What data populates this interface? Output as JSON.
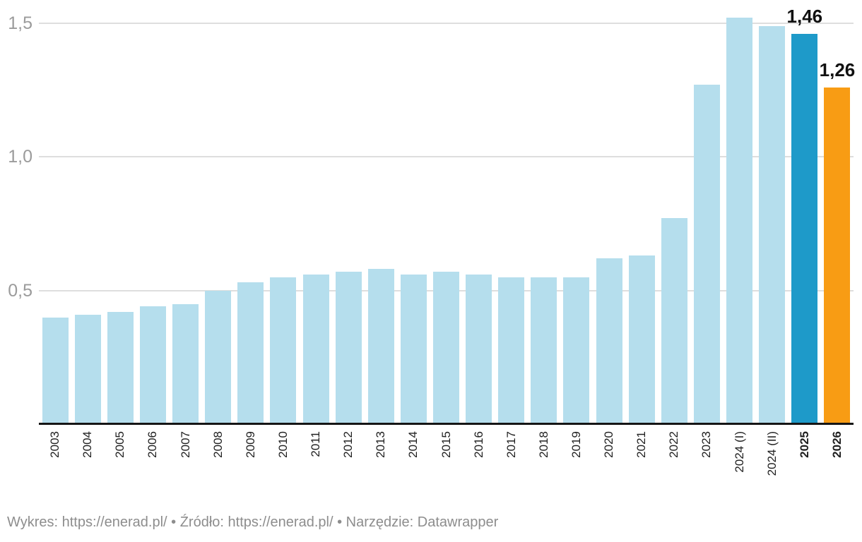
{
  "chart_data": {
    "type": "bar",
    "title": "",
    "xlabel": "",
    "ylabel": "",
    "categories": [
      "2003",
      "2004",
      "2005",
      "2006",
      "2007",
      "2008",
      "2009",
      "2010",
      "2011",
      "2012",
      "2013",
      "2014",
      "2015",
      "2016",
      "2017",
      "2018",
      "2019",
      "2020",
      "2021",
      "2022",
      "2023",
      "2024 (I)",
      "2024 (II)",
      "2025",
      "2026"
    ],
    "values": [
      0.4,
      0.41,
      0.42,
      0.44,
      0.45,
      0.5,
      0.53,
      0.55,
      0.56,
      0.57,
      0.58,
      0.56,
      0.57,
      0.56,
      0.55,
      0.55,
      0.55,
      0.62,
      0.63,
      0.77,
      1.27,
      1.52,
      1.49,
      1.46,
      1.26
    ],
    "value_labels": {
      "2025": "1,46",
      "2026": "1,26"
    },
    "bold_categories": [
      "2025",
      "2026"
    ],
    "y_ticks": [
      {
        "value": 0.5,
        "label": "0,5"
      },
      {
        "value": 1.0,
        "label": "1,0"
      },
      {
        "value": 1.5,
        "label": "1,5"
      }
    ],
    "ylim": [
      0,
      1.55
    ],
    "grid": "horizontal",
    "legend": "none",
    "bar_color_default": "#b5deed",
    "bar_color_overrides": {
      "2025": "#1e9ac9",
      "2026": "#f89c14"
    }
  },
  "colors": {
    "bar_default": "#b5deed",
    "bar_highlight_blue": "#1e9ac9",
    "bar_highlight_orange": "#f89c14",
    "gridline": "#dedede",
    "axis_line": "#161616",
    "y_tick_label": "#9b9b9b",
    "x_tick_label": "#1f1f1f",
    "value_label": "#111111",
    "footer_text": "#8d8d8d",
    "background": "#ffffff"
  },
  "footer": {
    "parts": [
      {
        "text": "Wykres: ",
        "link": false,
        "name": "footer-text"
      },
      {
        "text": "https://enerad.pl/",
        "link": true,
        "name": "footer-link-chart"
      },
      {
        "text": " • ",
        "link": false,
        "name": "footer-separator"
      },
      {
        "text": "Źródło: ",
        "link": false,
        "name": "footer-text"
      },
      {
        "text": "https://enerad.pl/",
        "link": true,
        "name": "footer-link-source"
      },
      {
        "text": " • ",
        "link": false,
        "name": "footer-separator"
      },
      {
        "text": "Narzędzie: ",
        "link": false,
        "name": "footer-text"
      },
      {
        "text": "Datawrapper",
        "link": true,
        "name": "footer-link-tool"
      }
    ]
  }
}
